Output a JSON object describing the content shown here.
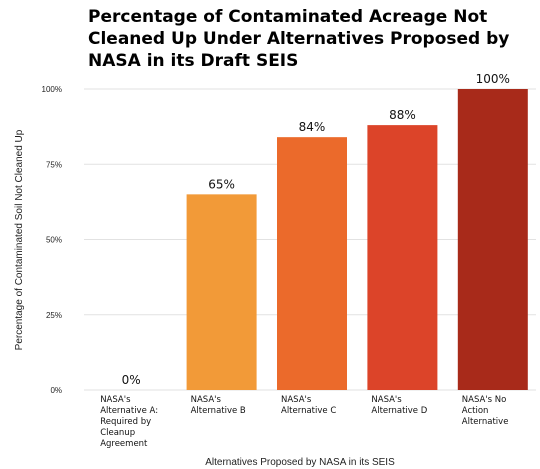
{
  "chart_data": {
    "type": "bar",
    "title": [
      "Percentage of Contaminated Acreage Not",
      "Cleaned Up Under Alternatives Proposed by",
      "NASA in its Draft SEIS"
    ],
    "xlabel": "Alternatives Proposed by NASA in its SEIS",
    "ylabel": "Percentage of Contaminated Soil Not Cleaned Up",
    "ylim": [
      0,
      100
    ],
    "yticks": [
      "0%",
      "25%",
      "50%",
      "75%",
      "100%"
    ],
    "grid": true,
    "categories": [
      [
        "NASA's",
        "Alternative A:",
        "Required by",
        "Cleanup",
        "Agreement"
      ],
      [
        "NASA's",
        "Alternative B"
      ],
      [
        "NASA's",
        "Alternative C"
      ],
      [
        "NASA's",
        "Alternative D"
      ],
      [
        "NASA's No",
        "Action",
        "Alternative"
      ]
    ],
    "values": [
      0,
      65,
      84,
      88,
      100
    ],
    "value_labels": [
      "0%",
      "65%",
      "84%",
      "88%",
      "100%"
    ],
    "colors": [
      "#f2a93b",
      "#f29a38",
      "#eb6a2b",
      "#dc4429",
      "#a82a1a"
    ]
  }
}
